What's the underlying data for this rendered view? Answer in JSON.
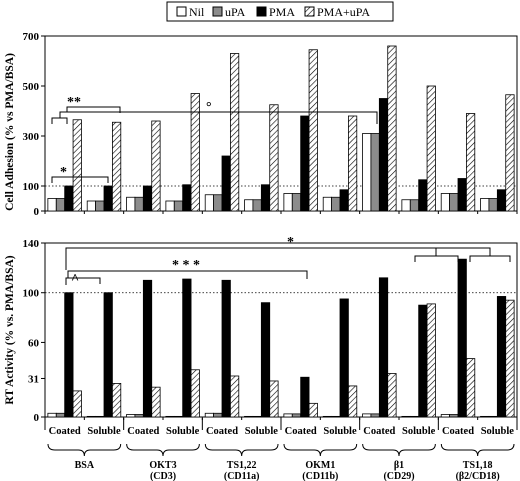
{
  "chart_data": {
    "type": "bar",
    "legend": {
      "placement": "top-center",
      "entries": [
        {
          "name": "Nil",
          "fill": "#ffffff"
        },
        {
          "name": "uPA",
          "fill": "#8c8c8c"
        },
        {
          "name": "PMA",
          "fill": "#000000"
        },
        {
          "name": "PMA+uPA",
          "fill": "hatch"
        }
      ]
    },
    "series": [
      "Nil",
      "uPA",
      "PMA",
      "PMA+uPA"
    ],
    "groups": [
      {
        "antibody": "BSA",
        "sub": "",
        "conditions": [
          "Coated",
          "Soluble"
        ]
      },
      {
        "antibody": "OKT3",
        "sub": "(CD3)",
        "conditions": [
          "Coated",
          "Soluble"
        ]
      },
      {
        "antibody": "TS1,22",
        "sub": "(CD11a)",
        "conditions": [
          "Coated",
          "Soluble"
        ]
      },
      {
        "antibody": "OKM1",
        "sub": "(CD11b)",
        "conditions": [
          "Coated",
          "Soluble"
        ]
      },
      {
        "antibody": "β1",
        "sub": "(CD29)",
        "conditions": [
          "Coated",
          "Soluble"
        ]
      },
      {
        "antibody": "TS1,18",
        "sub": "(β2/CD18)",
        "conditions": [
          "Coated",
          "Soluble"
        ]
      }
    ],
    "panels": [
      {
        "ylabel": "Cell Adhesion (% vs PMA/BSA)",
        "ylim": [
          0,
          700
        ],
        "yticks": [
          0,
          100,
          300,
          500,
          700
        ],
        "tick_labels": [
          "0",
          "100",
          "300",
          "500",
          "700"
        ],
        "reference_line": 100,
        "values": [
          [
            50,
            50,
            100,
            365
          ],
          [
            40,
            40,
            100,
            355
          ],
          [
            55,
            55,
            100,
            360
          ],
          [
            40,
            40,
            105,
            470
          ],
          [
            65,
            65,
            220,
            630
          ],
          [
            45,
            45,
            105,
            425
          ],
          [
            70,
            70,
            380,
            645
          ],
          [
            55,
            55,
            85,
            380
          ],
          [
            310,
            310,
            450,
            660
          ],
          [
            45,
            45,
            125,
            500
          ],
          [
            70,
            70,
            130,
            390
          ],
          [
            50,
            50,
            85,
            465
          ]
        ],
        "annotations": [
          {
            "label": "*"
          },
          {
            "label": "**"
          },
          {
            "label": "°"
          }
        ]
      },
      {
        "ylabel": "RT Activity (% vs. PMA/BSA)",
        "ylim": [
          0,
          140
        ],
        "yticks": [
          0,
          31,
          60,
          100,
          140
        ],
        "tick_labels": [
          "0",
          "31",
          "60",
          "100",
          "140"
        ],
        "reference_line": 100,
        "values": [
          [
            3,
            3,
            100,
            21
          ],
          [
            0.5,
            0.5,
            100,
            27
          ],
          [
            2,
            2,
            110,
            24
          ],
          [
            0.5,
            0.5,
            111,
            38
          ],
          [
            3,
            3,
            110,
            33
          ],
          [
            0.5,
            0.5,
            92,
            29
          ],
          [
            2.5,
            2.5,
            32,
            11
          ],
          [
            0.5,
            0.5,
            95,
            25
          ],
          [
            2.5,
            2.5,
            112,
            35
          ],
          [
            0.5,
            0.5,
            90,
            91
          ],
          [
            2,
            2,
            127,
            47
          ],
          [
            0.5,
            0.5,
            97,
            94
          ]
        ],
        "annotations": [
          {
            "label": "^"
          },
          {
            "label": "* * *"
          },
          {
            "label": "*"
          }
        ]
      }
    ]
  }
}
